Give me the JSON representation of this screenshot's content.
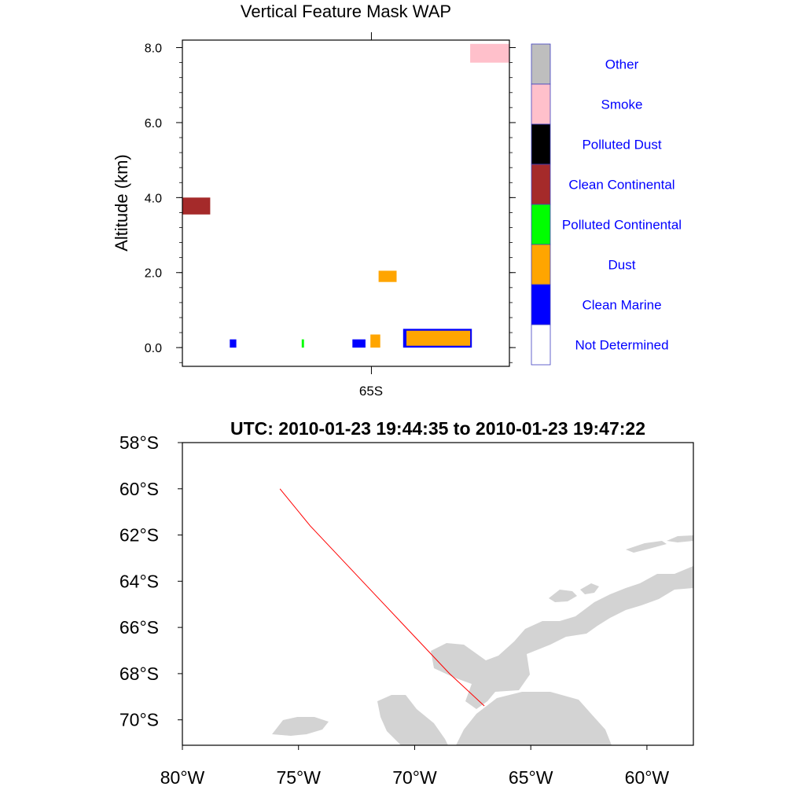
{
  "chart_data": [
    {
      "type": "heatmap",
      "title": "Vertical Feature Mask WAP",
      "ylabel": "Altitude (km)",
      "xlabel": "",
      "ylim": [
        -0.5,
        8.2
      ],
      "y_ticks": [
        "0.0",
        "2.0",
        "4.0",
        "6.0",
        "8.0"
      ],
      "x_tick_label": "65S",
      "legend": {
        "placement": "right",
        "entries": [
          {
            "name": "Other",
            "color": "#bebebe"
          },
          {
            "name": "Smoke",
            "color": "#ffc0cb"
          },
          {
            "name": "Polluted Dust",
            "color": "#000000"
          },
          {
            "name": "Clean Continental",
            "color": "#a52a2a"
          },
          {
            "name": "Polluted Continental",
            "color": "#00ff00"
          },
          {
            "name": "Dust",
            "color": "#ffa500"
          },
          {
            "name": "Clean Marine",
            "color": "#0000ff"
          },
          {
            "name": "Not Determined",
            "color": "#ffffff"
          }
        ]
      },
      "features": [
        {
          "class": "Smoke",
          "x": [
            0.88,
            1.0
          ],
          "y": [
            7.6,
            8.1
          ]
        },
        {
          "class": "Clean Continental",
          "x": [
            0.0,
            0.085
          ],
          "y": [
            3.55,
            4.0
          ]
        },
        {
          "class": "Dust",
          "x": [
            0.6,
            0.655
          ],
          "y": [
            1.75,
            2.05
          ]
        },
        {
          "class": "Clean Marine",
          "x": [
            0.145,
            0.165
          ],
          "y": [
            0.0,
            0.22
          ]
        },
        {
          "class": "Polluted Continental",
          "x": [
            0.365,
            0.372
          ],
          "y": [
            0.0,
            0.22
          ]
        },
        {
          "class": "Clean Marine",
          "x": [
            0.52,
            0.56
          ],
          "y": [
            0.0,
            0.22
          ]
        },
        {
          "class": "Dust",
          "x": [
            0.575,
            0.605
          ],
          "y": [
            0.0,
            0.35
          ]
        },
        {
          "class": "Clean Marine",
          "x": [
            0.675,
            0.885
          ],
          "y": [
            0.0,
            0.5
          ]
        },
        {
          "class": "Dust",
          "x": [
            0.685,
            0.88
          ],
          "y": [
            0.05,
            0.45
          ]
        }
      ]
    },
    {
      "type": "scatter",
      "title": "UTC: 2010-01-23 19:44:35 to 2010-01-23 19:47:22",
      "xlim": [
        -80,
        -58
      ],
      "ylim": [
        -71.1,
        -58
      ],
      "x_ticks": [
        "80°W",
        "75°W",
        "70°W",
        "65°W",
        "60°W"
      ],
      "y_ticks": [
        "58°S",
        "60°S",
        "62°S",
        "64°S",
        "66°S",
        "68°S",
        "70°S"
      ],
      "land_color": "#d3d3d3",
      "track_color": "#ff0000",
      "track": {
        "lon": [
          -75.8,
          -74.5,
          -73.0,
          -71.5,
          -70.0,
          -68.5,
          -67.0
        ],
        "lat": [
          -60.0,
          -61.6,
          -63.2,
          -64.8,
          -66.4,
          -68.0,
          -69.4
        ]
      }
    }
  ]
}
